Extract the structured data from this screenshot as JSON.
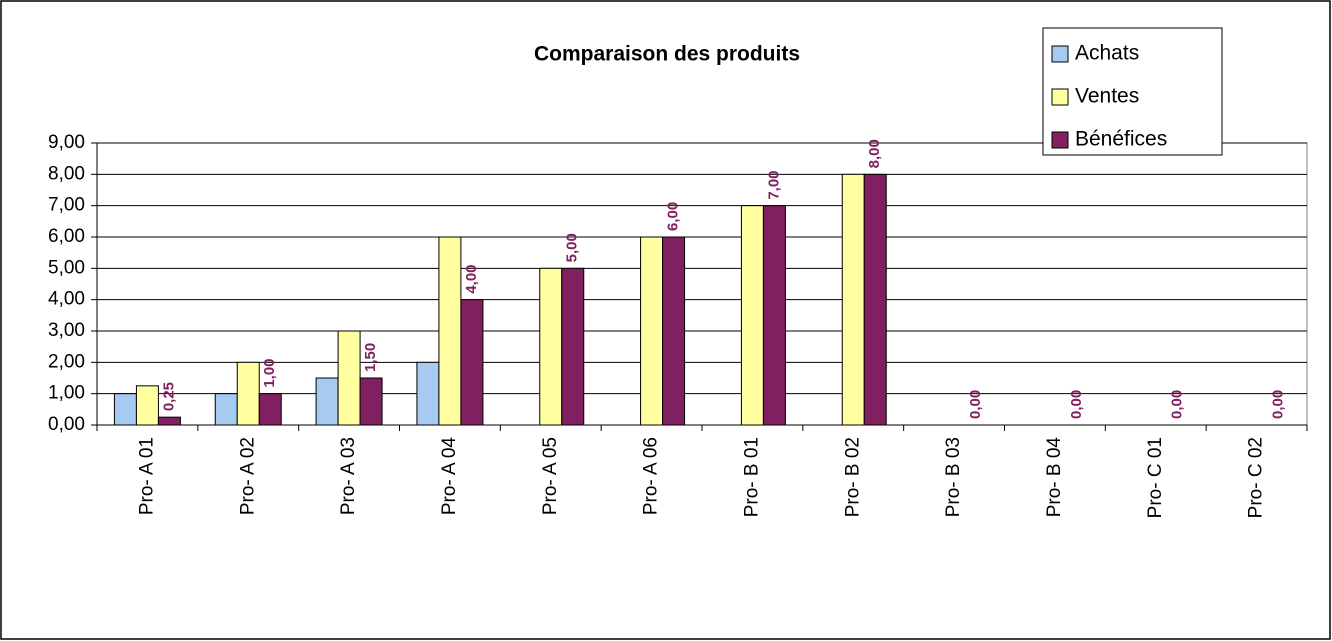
{
  "chart_data": {
    "type": "bar",
    "title": "Comparaison des produits",
    "categories": [
      "Pro- A 01",
      "Pro- A 02",
      "Pro- A 03",
      "Pro- A 04",
      "Pro- A 05",
      "Pro- A 06",
      "Pro- B 01",
      "Pro- B 02",
      "Pro- B 03",
      "Pro- B 04",
      "Pro- C 01",
      "Pro- C 02"
    ],
    "series": [
      {
        "name": "Achats",
        "color": "#a6caf0",
        "values": [
          1,
          1,
          1.5,
          2,
          0,
          0,
          0,
          0,
          0,
          0,
          0,
          0
        ]
      },
      {
        "name": "Ventes",
        "color": "#ffffa0",
        "values": [
          1.25,
          2,
          3,
          6,
          5,
          6,
          7,
          8,
          0,
          0,
          0,
          0
        ]
      },
      {
        "name": "Bénéfices",
        "color": "#802060",
        "values": [
          0.25,
          1,
          1.5,
          4,
          5,
          6,
          7,
          8,
          0,
          0,
          0,
          0
        ],
        "value_labels": [
          "0,25",
          "1,00",
          "1,50",
          "4,00",
          "5,00",
          "6,00",
          "7,00",
          "8,00",
          "0,00",
          "0,00",
          "0,00",
          "0,00"
        ]
      }
    ],
    "ylim": [
      0,
      9
    ],
    "yticks": [
      {
        "value": 0,
        "label": "0,00"
      },
      {
        "value": 1,
        "label": "1,00"
      },
      {
        "value": 2,
        "label": "2,00"
      },
      {
        "value": 3,
        "label": "3,00"
      },
      {
        "value": 4,
        "label": "4,00"
      },
      {
        "value": 5,
        "label": "5,00"
      },
      {
        "value": 6,
        "label": "6,00"
      },
      {
        "value": 7,
        "label": "7,00"
      },
      {
        "value": 8,
        "label": "8,00"
      },
      {
        "value": 9,
        "label": "9,00"
      }
    ],
    "grid": true,
    "legend": "top-right"
  }
}
